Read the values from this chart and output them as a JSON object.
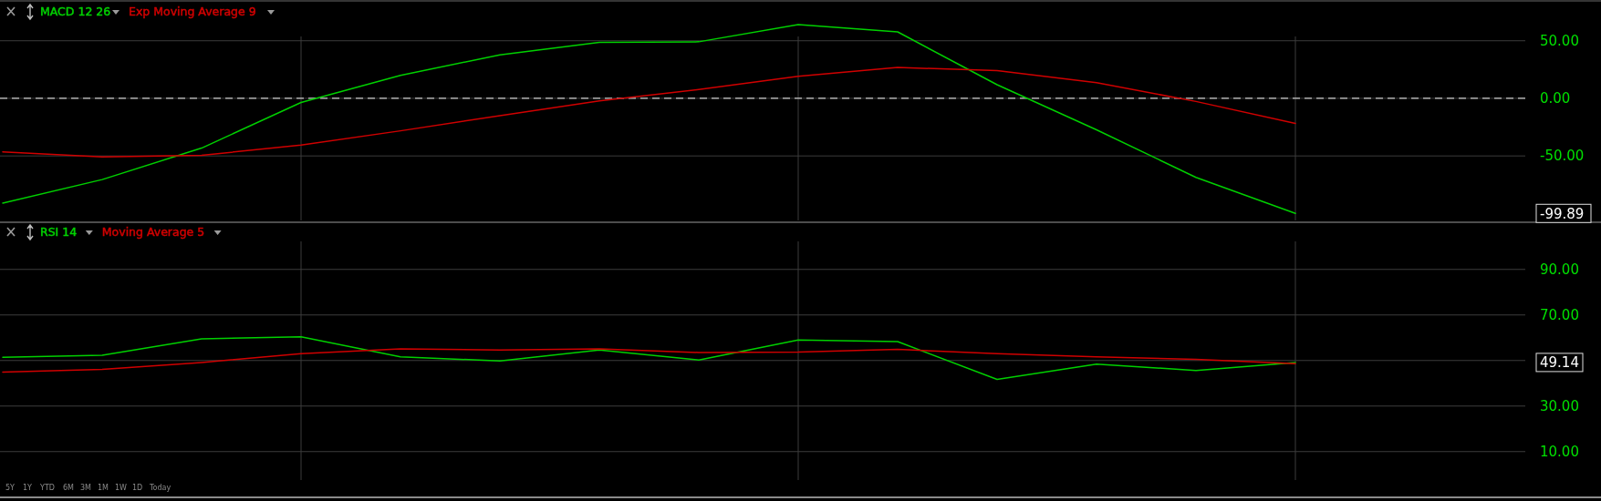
{
  "chart_data": [
    {
      "type": "line",
      "categories": [
        null,
        null,
        null,
        null,
        null,
        null,
        null,
        null,
        null,
        null,
        null,
        null,
        null,
        null
      ],
      "ylim": [
        -106,
        83
      ],
      "yticks": [
        {
          "value": 50,
          "label": "50.00"
        },
        {
          "value": 0,
          "label": "0.00"
        },
        {
          "value": -50,
          "label": "-50.00"
        }
      ],
      "grid": true,
      "legend": "top left",
      "marker": "none",
      "line_style": "solid",
      "series": [
        {
          "name": "MACD 12 26",
          "color": "#00d000",
          "values": [
            -90.9,
            -70.5,
            -43.2,
            -3.6,
            20,
            37.7,
            48.6,
            49.1,
            64,
            57.7,
            11.8,
            -27.3,
            -68.6,
            -99.89
          ]
        },
        {
          "name": "Exp Moving Average 9",
          "color": "#d00000",
          "values": [
            -46.4,
            -50.9,
            -49.5,
            -40.5,
            -28.2,
            -15,
            -2.3,
            7.7,
            19.1,
            26.8,
            24.1,
            13.6,
            -2.7,
            -21.8
          ]
        }
      ],
      "ref_lines": [
        {
          "axis": "y",
          "value": 0,
          "color": "#c8c8c8",
          "line_style": "dashed"
        }
      ],
      "annotations": [
        "-99.89"
      ]
    },
    {
      "type": "line",
      "categories": [
        null,
        null,
        null,
        null,
        null,
        null,
        null,
        null,
        null,
        null,
        null,
        null,
        null,
        null
      ],
      "ylim": [
        -2.5,
        102.3
      ],
      "yticks": [
        {
          "value": 90,
          "label": "90.00"
        },
        {
          "value": 70,
          "label": "70.00"
        },
        {
          "value": 50,
          "label": null
        },
        {
          "value": 30,
          "label": "30.00"
        },
        {
          "value": 10,
          "label": "10.00"
        }
      ],
      "grid": true,
      "legend": "top left",
      "marker": "none",
      "line_style": "solid",
      "series": [
        {
          "name": "RSI 14",
          "color": "#00d000",
          "values": [
            51.4,
            52.3,
            59.5,
            60.4,
            51.6,
            49.8,
            54.6,
            50.2,
            59,
            58.3,
            41.7,
            48.4,
            45.6,
            49.14
          ]
        },
        {
          "name": "Moving Average 5",
          "color": "#d00000",
          "values": [
            44.9,
            46.1,
            49.1,
            53,
            55.1,
            54.6,
            55.1,
            53.5,
            53.7,
            54.9,
            53,
            51.6,
            50.5,
            48.6
          ]
        }
      ],
      "annotations": [
        "49.14",
        "5Y",
        "1Y",
        "YTD",
        "6M",
        "3M",
        "1M",
        "1W",
        "1D",
        "Today"
      ]
    }
  ]
}
